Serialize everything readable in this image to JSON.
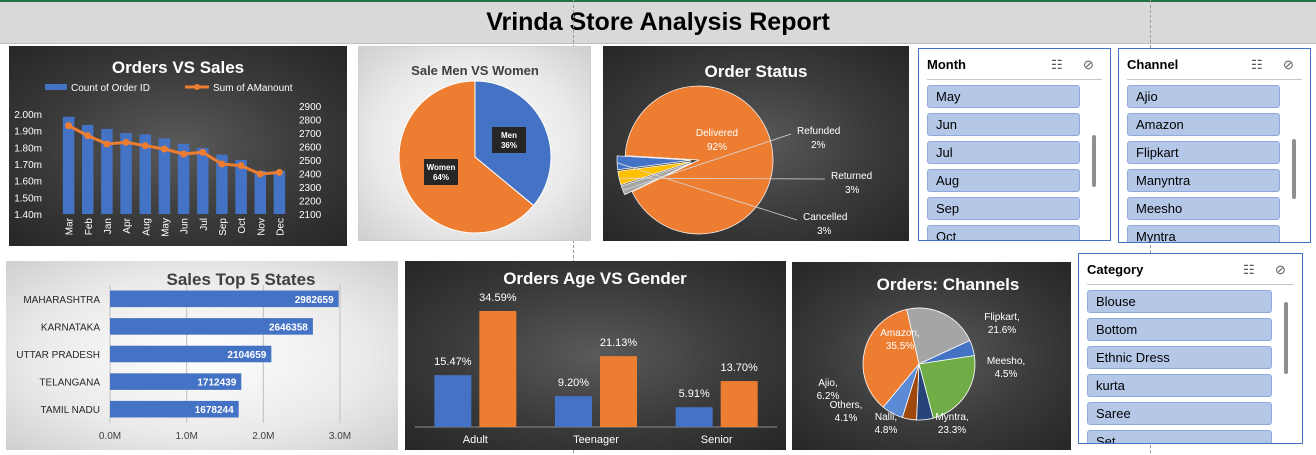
{
  "report_title": "Vrinda Store Analysis Report",
  "colors": {
    "blue": "#4472c4",
    "orange": "#ed7d31",
    "gray": "#a5a5a5",
    "yellow": "#ffc000",
    "green": "#70ad47",
    "navy": "#264478",
    "darkorange": "#9e480e"
  },
  "chart_data": [
    {
      "type": "bar",
      "title": "Orders VS Sales",
      "categories": [
        "Mar",
        "Feb",
        "Jan",
        "Apr",
        "Aug",
        "May",
        "Jun",
        "Jul",
        "Sep",
        "Oct",
        "Nov",
        "Dec"
      ],
      "y_left_ticks": [
        "2.00m",
        "1.90m",
        "1.80m",
        "1.70m",
        "1.60m",
        "1.50m",
        "1.40m"
      ],
      "y_left_range": [
        1.4,
        2.0
      ],
      "y_right_ticks": [
        "2900",
        "2800",
        "2700",
        "2600",
        "2500",
        "2400",
        "2300",
        "2200",
        "2100"
      ],
      "y_right_range": [
        2100,
        2900
      ],
      "series": [
        {
          "name": "Count of Order ID",
          "kind": "bar",
          "axis": "right",
          "values": [
            2820,
            2760,
            2730,
            2700,
            2690,
            2660,
            2620,
            2590,
            2540,
            2500,
            2420,
            2420
          ]
        },
        {
          "name": "Sum of AManount",
          "kind": "line",
          "axis": "left",
          "values": [
            1.93,
            1.87,
            1.82,
            1.83,
            1.81,
            1.79,
            1.76,
            1.77,
            1.7,
            1.69,
            1.64,
            1.65
          ]
        }
      ]
    },
    {
      "type": "pie",
      "title": "Sale Men VS Women",
      "slices": [
        {
          "label": "Men",
          "pct_label": "36%",
          "value": 36
        },
        {
          "label": "Women",
          "pct_label": "64%",
          "value": 64
        }
      ]
    },
    {
      "type": "pie",
      "title": "Order Status",
      "slices": [
        {
          "label": "Delivered",
          "pct_label": "92%",
          "value": 92
        },
        {
          "label": "Refunded",
          "pct_label": "2%",
          "value": 2
        },
        {
          "label": "Returned",
          "pct_label": "3%",
          "value": 3
        },
        {
          "label": "Cancelled",
          "pct_label": "3%",
          "value": 3
        }
      ]
    },
    {
      "type": "bar",
      "orientation": "horizontal",
      "title": "Sales Top 5 States",
      "categories": [
        "MAHARASHTRA",
        "KARNATAKA",
        "UTTAR PRADESH",
        "TELANGANA",
        "TAMIL NADU"
      ],
      "values": [
        2982659,
        2646358,
        2104659,
        1712439,
        1678244
      ],
      "value_labels": [
        "2982659",
        "2646358",
        "2104659",
        "1712439",
        "1678244"
      ],
      "x_ticks": [
        "0.0M",
        "1.0M",
        "2.0M",
        "3.0M"
      ],
      "xlim": [
        0,
        3000000
      ]
    },
    {
      "type": "bar",
      "title": "Orders Age VS Gender",
      "categories": [
        "Adult",
        "Teenager",
        "Senior"
      ],
      "series": [
        {
          "values": [
            15.47,
            9.2,
            5.91
          ],
          "labels": [
            "15.47%",
            "9.20%",
            "5.91%"
          ]
        },
        {
          "values": [
            34.59,
            21.13,
            13.7
          ],
          "labels": [
            "34.59%",
            "21.13%",
            "13.70%"
          ]
        }
      ]
    },
    {
      "type": "pie",
      "title": "Orders: Channels",
      "slices": [
        {
          "label": "Amazon,",
          "pct_label": "35.5%",
          "value": 35.5
        },
        {
          "label": "Flipkart,",
          "pct_label": "21.6%",
          "value": 21.6
        },
        {
          "label": "Meesho,",
          "pct_label": "4.5%",
          "value": 4.5
        },
        {
          "label": "Myntra,",
          "pct_label": "23.3%",
          "value": 23.3
        },
        {
          "label": "Nalli,",
          "pct_label": "4.8%",
          "value": 4.8
        },
        {
          "label": "Others,",
          "pct_label": "4.1%",
          "value": 4.1
        },
        {
          "label": "Ajio,",
          "pct_label": "6.2%",
          "value": 6.2
        }
      ]
    }
  ],
  "slicers": {
    "month": {
      "title": "Month",
      "items": [
        "May",
        "Jun",
        "Jul",
        "Aug",
        "Sep",
        "Oct"
      ]
    },
    "channel": {
      "title": "Channel",
      "items": [
        "Ajio",
        "Amazon",
        "Flipkart",
        "Manyntra",
        "Meesho",
        "Myntra"
      ]
    },
    "category": {
      "title": "Category",
      "items": [
        "Blouse",
        "Bottom",
        "Ethnic Dress",
        "kurta",
        "Saree",
        "Set"
      ]
    }
  },
  "icons": {
    "multiselect": "multi-select-icon",
    "clearfilter": "clear-filter-icon"
  }
}
